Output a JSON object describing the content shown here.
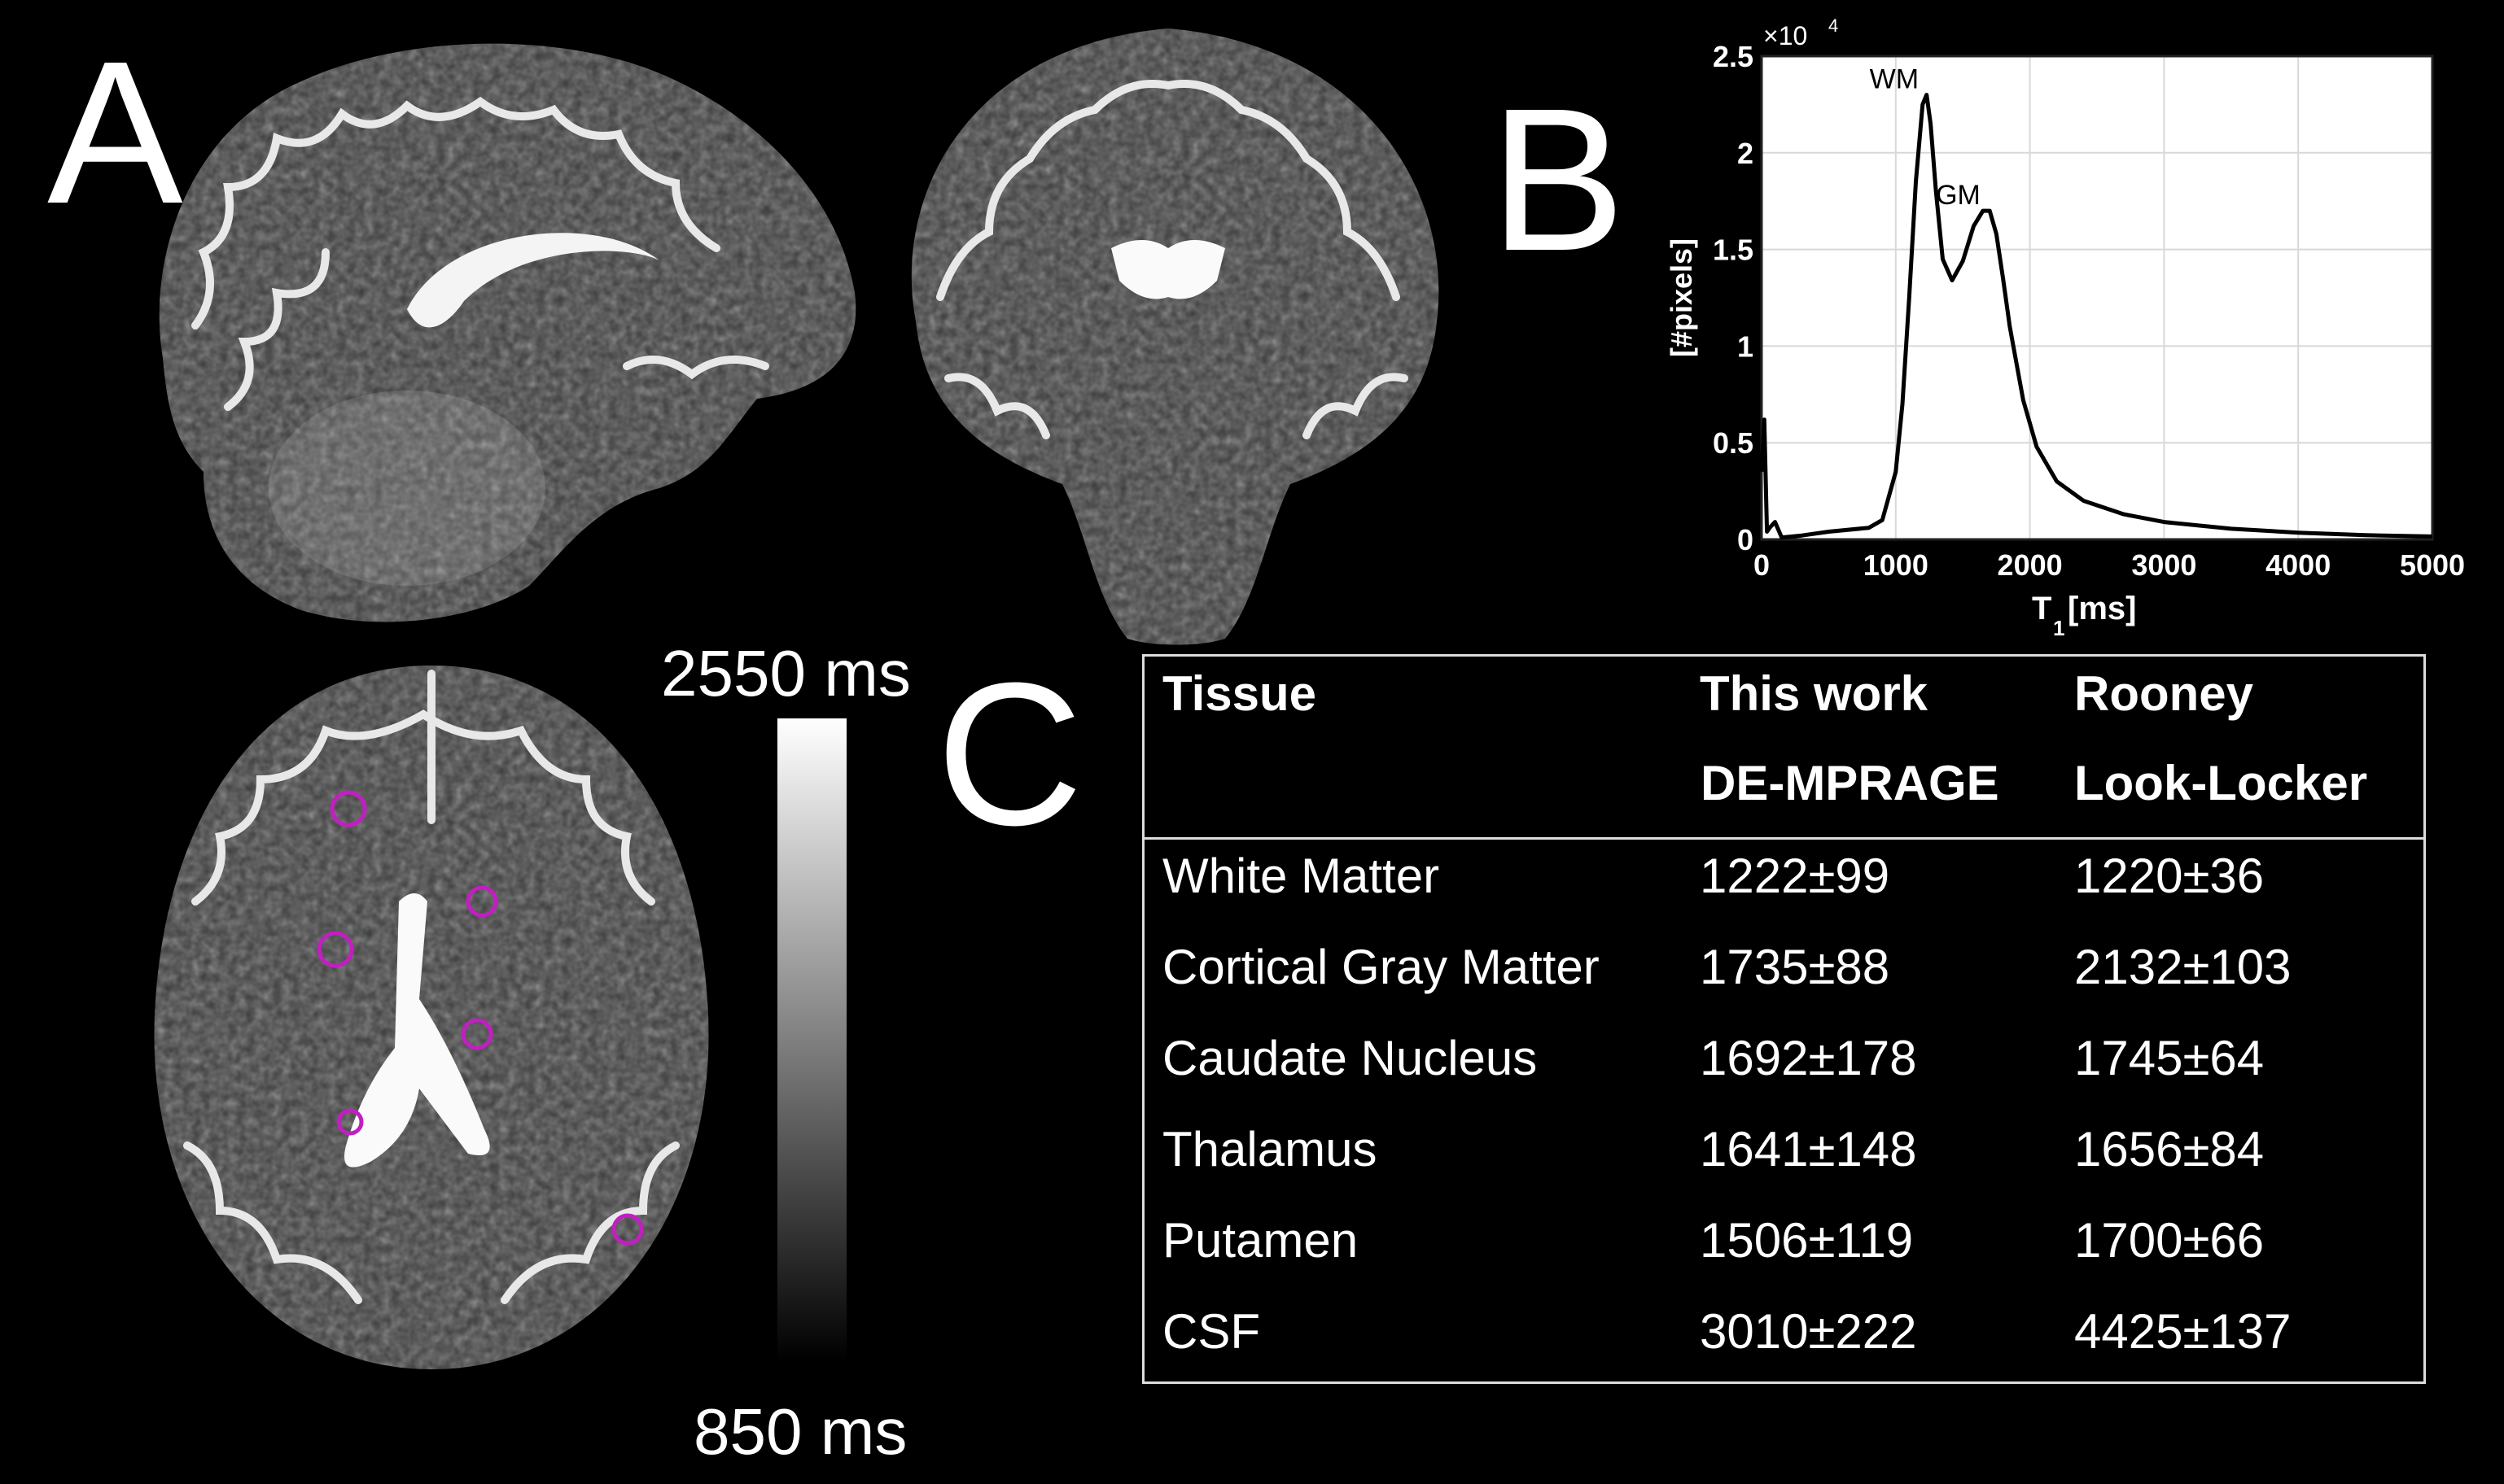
{
  "panels": {
    "a": "A",
    "b": "B",
    "c": "C"
  },
  "colorbar": {
    "max_label": "2550 ms",
    "min_label": "850 ms",
    "max_value": 2550,
    "min_value": 850,
    "unit": "ms"
  },
  "roi_color": "#c020c0",
  "table": {
    "headers": [
      {
        "line1": "Tissue",
        "line2": ""
      },
      {
        "line1": "This work",
        "line2": "DE-MPRAGE"
      },
      {
        "line1": "Rooney",
        "line2": "Look-Locker"
      }
    ],
    "rows": [
      [
        "White Matter",
        "1222±99",
        "1220±36"
      ],
      [
        "Cortical Gray Matter",
        "1735±88",
        "2132±103"
      ],
      [
        "Caudate Nucleus",
        "1692±178",
        "1745±64"
      ],
      [
        "Thalamus",
        "1641±148",
        "1656±84"
      ],
      [
        "Putamen",
        "1506±119",
        "1700±66"
      ],
      [
        "CSF",
        "3010±222",
        "4425±137"
      ]
    ]
  },
  "chart_data": {
    "type": "line",
    "xlabel": "T",
    "xlabel_sub": "1",
    "xlabel_unit": " [ms]",
    "ylabel": "[#pixels]",
    "y_multiplier": "×10",
    "y_multiplier_exp": "4",
    "xlim": [
      0,
      5000
    ],
    "ylim": [
      0,
      25000
    ],
    "xticks": [
      0,
      1000,
      2000,
      3000,
      4000,
      5000
    ],
    "yticks": [
      0,
      5000,
      10000,
      15000,
      20000,
      25000
    ],
    "ytick_labels": [
      "0",
      "0.5",
      "1",
      "1.5",
      "2",
      "2.5"
    ],
    "grid": true,
    "line_color": "#000000",
    "background": "#ffffff",
    "annotations": [
      {
        "text": "WM",
        "x": 1220,
        "y": 23000
      },
      {
        "text": "GM",
        "x": 1680,
        "y": 17000
      }
    ],
    "x": [
      0,
      20,
      40,
      60,
      100,
      150,
      300,
      500,
      800,
      900,
      1000,
      1050,
      1100,
      1150,
      1200,
      1230,
      1260,
      1300,
      1350,
      1420,
      1500,
      1580,
      1650,
      1700,
      1750,
      1800,
      1850,
      1950,
      2050,
      2200,
      2400,
      2700,
      3000,
      3500,
      4000,
      4500,
      5000
    ],
    "y": [
      3500,
      6200,
      400,
      600,
      900,
      100,
      200,
      400,
      600,
      1000,
      3500,
      7000,
      12500,
      18500,
      22500,
      23000,
      21500,
      18000,
      14500,
      13400,
      14400,
      16200,
      17000,
      17000,
      15800,
      13500,
      11000,
      7200,
      4800,
      3000,
      2000,
      1300,
      900,
      550,
      350,
      220,
      150
    ]
  }
}
